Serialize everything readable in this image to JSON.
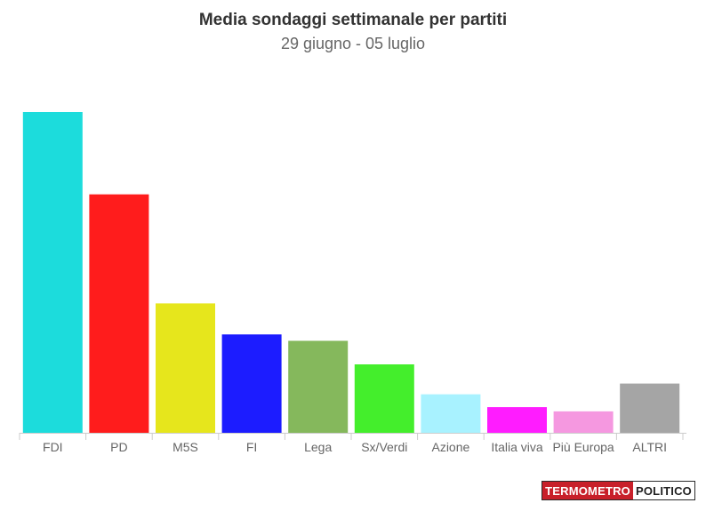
{
  "chart_data": {
    "type": "bar",
    "title": "Media sondaggi settimanale per partiti",
    "subtitle": "29 giugno - 05 luglio",
    "categories": [
      "FDI",
      "PD",
      "M5S",
      "FI",
      "Lega",
      "Sx/Verdi",
      "Azione",
      "Italia viva",
      "Più Europa",
      "ALTRI"
    ],
    "values": [
      30.0,
      22.3,
      12.1,
      9.2,
      8.6,
      6.4,
      3.6,
      2.4,
      2.0,
      4.6
    ],
    "colors": [
      "#1cdcdc",
      "#ff1c1c",
      "#e6e61c",
      "#1c1cff",
      "#85b85c",
      "#44ee2c",
      "#a8f2ff",
      "#ff1cff",
      "#f598e0",
      "#a5a5a5"
    ],
    "xlabel": "",
    "ylabel": "",
    "ylim": [
      0,
      30
    ],
    "grid": false,
    "legend": "none"
  },
  "logo": {
    "part1": "TERMOMETRO",
    "part2": "POLITICO"
  }
}
